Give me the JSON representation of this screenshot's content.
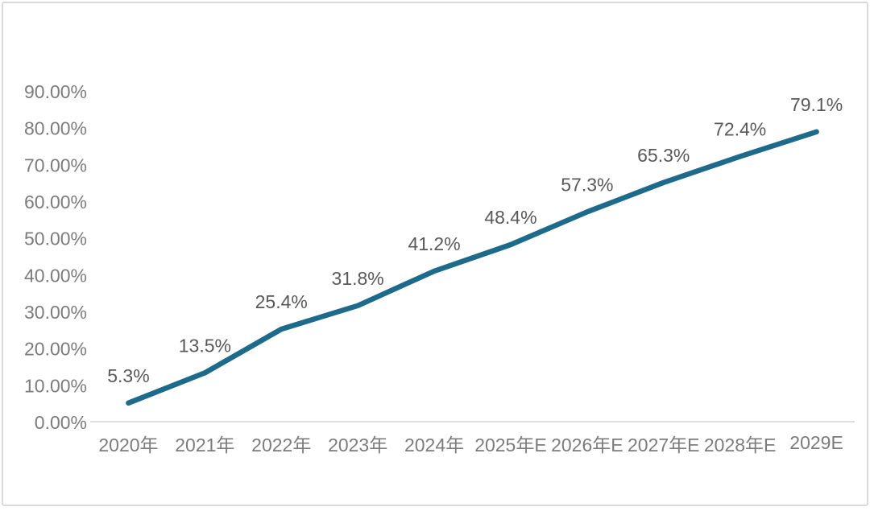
{
  "chart_data": {
    "type": "line",
    "title": "",
    "xlabel": "",
    "ylabel": "",
    "categories": [
      "2020年",
      "2021年",
      "2022年",
      "2023年",
      "2024年",
      "2025年E",
      "2026年E",
      "2027年E",
      "2028年E",
      "2029E"
    ],
    "values": [
      5.3,
      13.5,
      25.4,
      31.8,
      41.2,
      48.4,
      57.3,
      65.3,
      72.4,
      79.1
    ],
    "data_labels": [
      "5.3%",
      "13.5%",
      "25.4%",
      "31.8%",
      "41.2%",
      "48.4%",
      "57.3%",
      "65.3%",
      "72.4%",
      "79.1%"
    ],
    "y_ticks": [
      "0.00%",
      "10.00%",
      "20.00%",
      "30.00%",
      "40.00%",
      "50.00%",
      "60.00%",
      "70.00%",
      "80.00%",
      "90.00%"
    ],
    "y_tick_values": [
      0,
      10,
      20,
      30,
      40,
      50,
      60,
      70,
      80,
      90
    ],
    "ylim": [
      0,
      90
    ],
    "grid": false,
    "legend": false,
    "colors": {
      "line": "#1e6a8b",
      "data_label": "#595959",
      "axis_label": "#7c7c7c",
      "axis_line": "#d9d9d9",
      "background": "#ffffff",
      "border": "#d9d9d9"
    }
  }
}
